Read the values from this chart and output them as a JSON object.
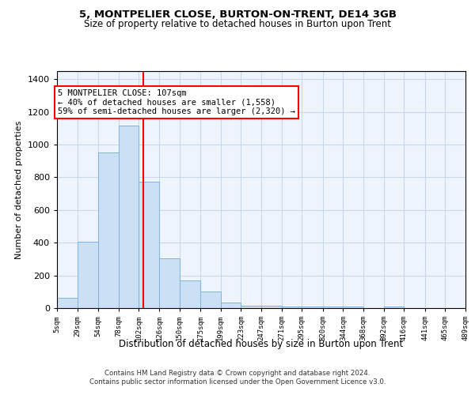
{
  "title1": "5, MONTPELIER CLOSE, BURTON-ON-TRENT, DE14 3GB",
  "title2": "Size of property relative to detached houses in Burton upon Trent",
  "xlabel": "Distribution of detached houses by size in Burton upon Trent",
  "ylabel": "Number of detached properties",
  "bin_edges": [
    5,
    29,
    54,
    78,
    102,
    126,
    150,
    175,
    199,
    223,
    247,
    271,
    295,
    320,
    344,
    368,
    392,
    416,
    441,
    465,
    489
  ],
  "bar_heights": [
    65,
    405,
    950,
    1115,
    775,
    305,
    170,
    100,
    35,
    15,
    15,
    10,
    10,
    10,
    10,
    0,
    10,
    0,
    0,
    0
  ],
  "bar_color": "#cce0f5",
  "bar_edgecolor": "#7fb3e0",
  "grid_color": "#c8d8e8",
  "background_color": "#eef4fb",
  "red_line_x": 107,
  "annotation_box_text": "5 MONTPELIER CLOSE: 107sqm\n← 40% of detached houses are smaller (1,558)\n59% of semi-detached houses are larger (2,320) →",
  "ylim": [
    0,
    1450
  ],
  "yticks": [
    0,
    200,
    400,
    600,
    800,
    1000,
    1200,
    1400
  ],
  "footnote1": "Contains HM Land Registry data © Crown copyright and database right 2024.",
  "footnote2": "Contains public sector information licensed under the Open Government Licence v3.0.",
  "tick_labels": [
    "5sqm",
    "29sqm",
    "54sqm",
    "78sqm",
    "102sqm",
    "126sqm",
    "150sqm",
    "175sqm",
    "199sqm",
    "223sqm",
    "247sqm",
    "271sqm",
    "295sqm",
    "320sqm",
    "344sqm",
    "368sqm",
    "392sqm",
    "416sqm",
    "441sqm",
    "465sqm",
    "489sqm"
  ]
}
